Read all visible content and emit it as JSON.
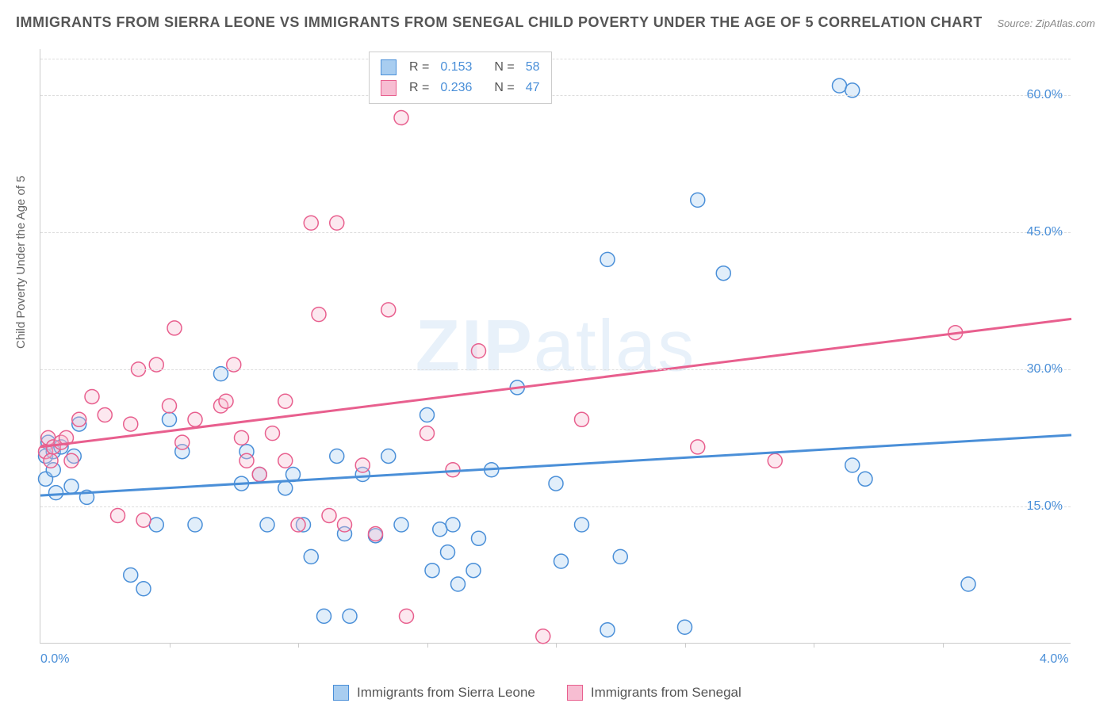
{
  "title": "IMMIGRANTS FROM SIERRA LEONE VS IMMIGRANTS FROM SENEGAL CHILD POVERTY UNDER THE AGE OF 5 CORRELATION CHART",
  "source": "Source: ZipAtlas.com",
  "y_axis_label": "Child Poverty Under the Age of 5",
  "watermark_bold": "ZIP",
  "watermark_light": "atlas",
  "chart": {
    "type": "scatter",
    "xlim": [
      0.0,
      4.0
    ],
    "ylim": [
      0.0,
      65.0
    ],
    "x_ticks": [
      0.0,
      4.0
    ],
    "x_tick_labels": [
      "0.0%",
      "4.0%"
    ],
    "x_minor_ticks": [
      0.5,
      1.0,
      1.5,
      2.0,
      2.5,
      3.0,
      3.5
    ],
    "y_gridlines": [
      15.0,
      30.0,
      45.0,
      60.0
    ],
    "y_tick_labels": [
      "15.0%",
      "30.0%",
      "45.0%",
      "60.0%"
    ],
    "y_extra_gridline": 64.0,
    "background_color": "#ffffff",
    "grid_color": "#dddddd",
    "axis_color": "#cccccc",
    "tick_label_color": "#4a8fd8",
    "marker_radius": 9,
    "marker_stroke_width": 1.5,
    "marker_fill_opacity": 0.35,
    "trend_line_width": 3,
    "series": [
      {
        "name": "Immigrants from Sierra Leone",
        "color": "#4a8fd8",
        "fill_color": "#a8cdf0",
        "r": "0.153",
        "n": "58",
        "trend": {
          "x1": 0.0,
          "y1": 16.2,
          "x2": 4.0,
          "y2": 22.8
        },
        "points": [
          [
            0.02,
            20.5
          ],
          [
            0.02,
            18.0
          ],
          [
            0.03,
            22.0
          ],
          [
            0.05,
            21.0
          ],
          [
            0.05,
            19.0
          ],
          [
            0.06,
            16.5
          ],
          [
            0.08,
            21.5
          ],
          [
            0.12,
            17.2
          ],
          [
            0.13,
            20.5
          ],
          [
            0.15,
            24.0
          ],
          [
            0.18,
            16.0
          ],
          [
            0.35,
            7.5
          ],
          [
            0.4,
            6.0
          ],
          [
            0.45,
            13.0
          ],
          [
            0.5,
            24.5
          ],
          [
            0.55,
            21.0
          ],
          [
            0.6,
            13.0
          ],
          [
            0.7,
            29.5
          ],
          [
            0.78,
            17.5
          ],
          [
            0.8,
            21.0
          ],
          [
            0.85,
            18.5
          ],
          [
            0.88,
            13.0
          ],
          [
            0.95,
            17.0
          ],
          [
            0.98,
            18.5
          ],
          [
            1.02,
            13.0
          ],
          [
            1.05,
            9.5
          ],
          [
            1.1,
            3.0
          ],
          [
            1.15,
            20.5
          ],
          [
            1.18,
            12.0
          ],
          [
            1.2,
            3.0
          ],
          [
            1.25,
            18.5
          ],
          [
            1.3,
            11.8
          ],
          [
            1.35,
            20.5
          ],
          [
            1.4,
            13.0
          ],
          [
            1.5,
            25.0
          ],
          [
            1.52,
            8.0
          ],
          [
            1.55,
            12.5
          ],
          [
            1.58,
            10.0
          ],
          [
            1.6,
            13.0
          ],
          [
            1.62,
            6.5
          ],
          [
            1.68,
            8.0
          ],
          [
            1.7,
            11.5
          ],
          [
            1.75,
            19.0
          ],
          [
            1.85,
            28.0
          ],
          [
            2.0,
            17.5
          ],
          [
            2.02,
            9.0
          ],
          [
            2.1,
            13.0
          ],
          [
            2.2,
            1.5
          ],
          [
            2.2,
            42.0
          ],
          [
            2.25,
            9.5
          ],
          [
            2.5,
            1.8
          ],
          [
            2.55,
            48.5
          ],
          [
            2.65,
            40.5
          ],
          [
            3.1,
            61.0
          ],
          [
            3.15,
            60.5
          ],
          [
            3.2,
            18.0
          ],
          [
            3.6,
            6.5
          ],
          [
            3.15,
            19.5
          ]
        ]
      },
      {
        "name": "Immigrants from Senegal",
        "color": "#e85f8e",
        "fill_color": "#f7bdd2",
        "r": "0.236",
        "n": "47",
        "trend": {
          "x1": 0.0,
          "y1": 21.5,
          "x2": 4.0,
          "y2": 35.5
        },
        "points": [
          [
            0.02,
            21.0
          ],
          [
            0.03,
            22.5
          ],
          [
            0.04,
            20.0
          ],
          [
            0.05,
            21.5
          ],
          [
            0.08,
            22.0
          ],
          [
            0.1,
            22.5
          ],
          [
            0.12,
            20.0
          ],
          [
            0.15,
            24.5
          ],
          [
            0.2,
            27.0
          ],
          [
            0.25,
            25.0
          ],
          [
            0.3,
            14.0
          ],
          [
            0.35,
            24.0
          ],
          [
            0.38,
            30.0
          ],
          [
            0.45,
            30.5
          ],
          [
            0.5,
            26.0
          ],
          [
            0.52,
            34.5
          ],
          [
            0.55,
            22.0
          ],
          [
            0.6,
            24.5
          ],
          [
            0.7,
            26.0
          ],
          [
            0.72,
            26.5
          ],
          [
            0.75,
            30.5
          ],
          [
            0.78,
            22.5
          ],
          [
            0.8,
            20.0
          ],
          [
            0.85,
            18.5
          ],
          [
            0.9,
            23.0
          ],
          [
            0.95,
            20.0
          ],
          [
            1.0,
            13.0
          ],
          [
            1.05,
            46.0
          ],
          [
            1.08,
            36.0
          ],
          [
            1.12,
            14.0
          ],
          [
            1.15,
            46.0
          ],
          [
            1.18,
            13.0
          ],
          [
            1.25,
            19.5
          ],
          [
            1.3,
            12.0
          ],
          [
            1.35,
            36.5
          ],
          [
            1.4,
            57.5
          ],
          [
            1.42,
            3.0
          ],
          [
            1.5,
            23.0
          ],
          [
            1.6,
            19.0
          ],
          [
            1.7,
            32.0
          ],
          [
            1.95,
            0.8
          ],
          [
            2.1,
            24.5
          ],
          [
            2.55,
            21.5
          ],
          [
            2.85,
            20.0
          ],
          [
            3.55,
            34.0
          ],
          [
            0.4,
            13.5
          ],
          [
            0.95,
            26.5
          ]
        ]
      }
    ]
  },
  "legend_top_labels": {
    "r": "R  =",
    "n": "N  ="
  }
}
